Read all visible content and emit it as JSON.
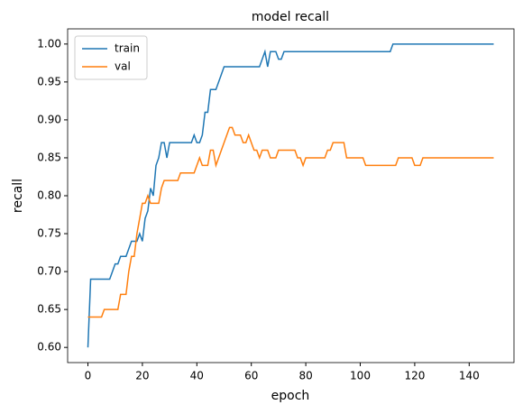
{
  "chart_data": {
    "type": "line",
    "title": "model recall",
    "xlabel": "epoch",
    "ylabel": "recall",
    "x": [
      0,
      1,
      2,
      3,
      4,
      5,
      6,
      7,
      8,
      9,
      10,
      11,
      12,
      13,
      14,
      15,
      16,
      17,
      18,
      19,
      20,
      21,
      22,
      23,
      24,
      25,
      26,
      27,
      28,
      29,
      30,
      31,
      32,
      33,
      34,
      35,
      36,
      37,
      38,
      39,
      40,
      41,
      42,
      43,
      44,
      45,
      46,
      47,
      48,
      49,
      50,
      51,
      52,
      53,
      54,
      55,
      56,
      57,
      58,
      59,
      60,
      61,
      62,
      63,
      64,
      65,
      66,
      67,
      68,
      69,
      70,
      71,
      72,
      73,
      74,
      75,
      76,
      77,
      78,
      79,
      80,
      81,
      82,
      83,
      84,
      85,
      86,
      87,
      88,
      89,
      90,
      91,
      92,
      93,
      94,
      95,
      96,
      97,
      98,
      99,
      100,
      101,
      102,
      103,
      104,
      105,
      106,
      107,
      108,
      109,
      110,
      111,
      112,
      113,
      114,
      115,
      116,
      117,
      118,
      119,
      120,
      121,
      122,
      123,
      124,
      125,
      126,
      127,
      128,
      129,
      130,
      131,
      132,
      133,
      134,
      135,
      136,
      137,
      138,
      139,
      140,
      141,
      142,
      143,
      144,
      145,
      146,
      147,
      148,
      149
    ],
    "series": [
      {
        "name": "train",
        "color": "#1f77b4",
        "values": [
          0.6,
          0.69,
          0.69,
          0.69,
          0.69,
          0.69,
          0.69,
          0.69,
          0.69,
          0.7,
          0.71,
          0.71,
          0.72,
          0.72,
          0.72,
          0.73,
          0.74,
          0.74,
          0.74,
          0.75,
          0.74,
          0.77,
          0.78,
          0.81,
          0.8,
          0.84,
          0.85,
          0.87,
          0.87,
          0.85,
          0.87,
          0.87,
          0.87,
          0.87,
          0.87,
          0.87,
          0.87,
          0.87,
          0.87,
          0.88,
          0.87,
          0.87,
          0.88,
          0.91,
          0.91,
          0.94,
          0.94,
          0.94,
          0.95,
          0.96,
          0.97,
          0.97,
          0.97,
          0.97,
          0.97,
          0.97,
          0.97,
          0.97,
          0.97,
          0.97,
          0.97,
          0.97,
          0.97,
          0.97,
          0.98,
          0.99,
          0.97,
          0.99,
          0.99,
          0.99,
          0.98,
          0.98,
          0.99,
          0.99,
          0.99,
          0.99,
          0.99,
          0.99,
          0.99,
          0.99,
          0.99,
          0.99,
          0.99,
          0.99,
          0.99,
          0.99,
          0.99,
          0.99,
          0.99,
          0.99,
          0.99,
          0.99,
          0.99,
          0.99,
          0.99,
          0.99,
          0.99,
          0.99,
          0.99,
          0.99,
          0.99,
          0.99,
          0.99,
          0.99,
          0.99,
          0.99,
          0.99,
          0.99,
          0.99,
          0.99,
          0.99,
          0.99,
          1.0,
          1.0,
          1.0,
          1.0,
          1.0,
          1.0,
          1.0,
          1.0,
          1.0,
          1.0,
          1.0,
          1.0,
          1.0,
          1.0,
          1.0,
          1.0,
          1.0,
          1.0,
          1.0,
          1.0,
          1.0,
          1.0,
          1.0,
          1.0,
          1.0,
          1.0,
          1.0,
          1.0,
          1.0,
          1.0,
          1.0,
          1.0,
          1.0,
          1.0,
          1.0,
          1.0,
          1.0,
          1.0
        ]
      },
      {
        "name": "val",
        "color": "#ff7f0e",
        "values": [
          0.64,
          0.64,
          0.64,
          0.64,
          0.64,
          0.64,
          0.65,
          0.65,
          0.65,
          0.65,
          0.65,
          0.65,
          0.67,
          0.67,
          0.67,
          0.7,
          0.72,
          0.72,
          0.75,
          0.77,
          0.79,
          0.79,
          0.8,
          0.79,
          0.79,
          0.79,
          0.79,
          0.81,
          0.82,
          0.82,
          0.82,
          0.82,
          0.82,
          0.82,
          0.83,
          0.83,
          0.83,
          0.83,
          0.83,
          0.83,
          0.84,
          0.85,
          0.84,
          0.84,
          0.84,
          0.86,
          0.86,
          0.84,
          0.85,
          0.86,
          0.87,
          0.88,
          0.89,
          0.89,
          0.88,
          0.88,
          0.88,
          0.87,
          0.87,
          0.88,
          0.87,
          0.86,
          0.86,
          0.85,
          0.86,
          0.86,
          0.86,
          0.85,
          0.85,
          0.85,
          0.86,
          0.86,
          0.86,
          0.86,
          0.86,
          0.86,
          0.86,
          0.85,
          0.85,
          0.84,
          0.85,
          0.85,
          0.85,
          0.85,
          0.85,
          0.85,
          0.85,
          0.85,
          0.86,
          0.86,
          0.87,
          0.87,
          0.87,
          0.87,
          0.87,
          0.85,
          0.85,
          0.85,
          0.85,
          0.85,
          0.85,
          0.85,
          0.84,
          0.84,
          0.84,
          0.84,
          0.84,
          0.84,
          0.84,
          0.84,
          0.84,
          0.84,
          0.84,
          0.84,
          0.85,
          0.85,
          0.85,
          0.85,
          0.85,
          0.85,
          0.84,
          0.84,
          0.84,
          0.85,
          0.85,
          0.85,
          0.85,
          0.85,
          0.85,
          0.85,
          0.85,
          0.85,
          0.85,
          0.85,
          0.85,
          0.85,
          0.85,
          0.85,
          0.85,
          0.85,
          0.85,
          0.85,
          0.85,
          0.85,
          0.85,
          0.85,
          0.85,
          0.85,
          0.85,
          0.85
        ]
      }
    ],
    "xlim": [
      -7.45,
      156.45
    ],
    "xticks": [
      0,
      20,
      40,
      60,
      80,
      100,
      120,
      140
    ],
    "ylim": [
      0.58,
      1.02
    ],
    "yticks": [
      {
        "value": 0.6,
        "label": "0.60"
      },
      {
        "value": 0.65,
        "label": "0.65"
      },
      {
        "value": 0.7,
        "label": "0.70"
      },
      {
        "value": 0.75,
        "label": "0.75"
      },
      {
        "value": 0.8,
        "label": "0.80"
      },
      {
        "value": 0.85,
        "label": "0.85"
      },
      {
        "value": 0.9,
        "label": "0.90"
      },
      {
        "value": 0.95,
        "label": "0.95"
      },
      {
        "value": 1.0,
        "label": "1.00"
      }
    ],
    "legend": "upper left",
    "grid": false
  }
}
